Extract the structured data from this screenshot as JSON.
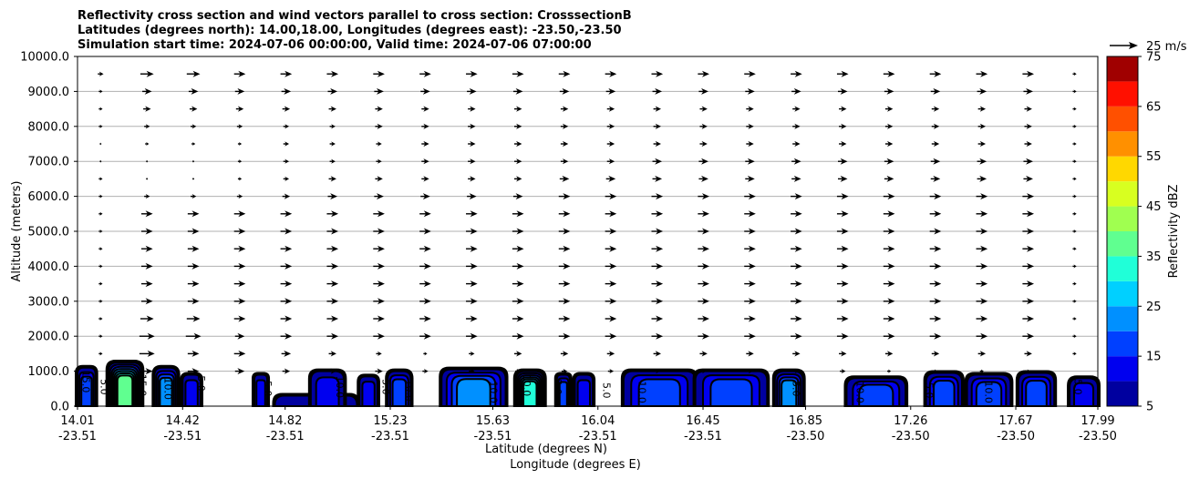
{
  "chart_data": {
    "type": "contour",
    "title": [
      "Reflectivity cross section and wind vectors parallel to cross section: CrosssectionB",
      "Latitudes (degrees north): 14.00,18.00, Longitudes (degrees east): -23.50,-23.50",
      "Simulation start time: 2024-07-06 00:00:00, Valid time: 2024-07-06 07:00:00"
    ],
    "xlabel_lat": "Latitude (degrees N)",
    "xlabel_lon": "Longitude (degrees E)",
    "ylabel": "Altitude (meters)",
    "xlim": [
      14.01,
      17.99
    ],
    "ylim": [
      0,
      10000
    ],
    "grid": "horizontal",
    "x_ticks": [
      {
        "lat": "14.01",
        "lon": "-23.51",
        "value": 14.01
      },
      {
        "lat": "14.42",
        "lon": "-23.51",
        "value": 14.42
      },
      {
        "lat": "14.82",
        "lon": "-23.51",
        "value": 14.82
      },
      {
        "lat": "15.23",
        "lon": "-23.51",
        "value": 15.23
      },
      {
        "lat": "15.63",
        "lon": "-23.51",
        "value": 15.63
      },
      {
        "lat": "16.04",
        "lon": "-23.51",
        "value": 16.04
      },
      {
        "lat": "16.45",
        "lon": "-23.51",
        "value": 16.45
      },
      {
        "lat": "16.85",
        "lon": "-23.50",
        "value": 16.85
      },
      {
        "lat": "17.26",
        "lon": "-23.50",
        "value": 17.26
      },
      {
        "lat": "17.67",
        "lon": "-23.50",
        "value": 17.67
      },
      {
        "lat": "17.99",
        "lon": "-23.50",
        "value": 17.99
      }
    ],
    "y_ticks": [
      "0.0",
      "1000.0",
      "2000.0",
      "3000.0",
      "4000.0",
      "5000.0",
      "6000.0",
      "7000.0",
      "8000.0",
      "9000.0",
      "10000.0"
    ],
    "colorbar": {
      "label": "Reflectivity dBZ",
      "ticks": [
        "5",
        "15",
        "25",
        "35",
        "45",
        "55",
        "65",
        "75"
      ],
      "levels": [
        5,
        10,
        15,
        20,
        25,
        30,
        35,
        40,
        45,
        50,
        55,
        60,
        65,
        70,
        75
      ],
      "colors": [
        "#00009f",
        "#0000ef",
        "#0040ff",
        "#0090ff",
        "#00d0ff",
        "#20ffd8",
        "#60ff90",
        "#a0ff50",
        "#d8ff20",
        "#ffd800",
        "#ff9000",
        "#ff5000",
        "#ff1000",
        "#a00000"
      ]
    },
    "quiver_key": {
      "label": "25 m/s",
      "speed": 25
    },
    "wind_rows": [
      {
        "alt": 500,
        "speeds": [
          0,
          0,
          0,
          0,
          0,
          0,
          0,
          0,
          0,
          0,
          0,
          0,
          0,
          0,
          0,
          0,
          0,
          0,
          0,
          0,
          0,
          0
        ]
      },
      {
        "alt": 1000,
        "speeds": [
          0,
          6,
          6,
          5,
          4,
          4,
          4,
          3,
          3,
          3,
          3,
          3,
          3,
          3,
          3,
          3,
          3,
          2,
          2,
          2,
          2,
          0
        ]
      },
      {
        "alt": 1500,
        "speeds": [
          2,
          8,
          6,
          6,
          5,
          4,
          3,
          2,
          3,
          4,
          4,
          4,
          4,
          4,
          4,
          4,
          4,
          4,
          4,
          4,
          4,
          2
        ]
      },
      {
        "alt": 2000,
        "speeds": [
          2,
          8,
          8,
          5,
          6,
          6,
          6,
          6,
          6,
          6,
          6,
          6,
          6,
          6,
          6,
          6,
          6,
          6,
          6,
          6,
          6,
          2
        ]
      },
      {
        "alt": 2500,
        "speeds": [
          2,
          7,
          7,
          6,
          6,
          6,
          6,
          6,
          6,
          6,
          6,
          6,
          6,
          6,
          6,
          6,
          6,
          6,
          6,
          6,
          6,
          2
        ]
      },
      {
        "alt": 3000,
        "speeds": [
          2,
          6,
          6,
          6,
          6,
          6,
          6,
          6,
          6,
          6,
          6,
          6,
          6,
          6,
          6,
          6,
          6,
          6,
          6,
          6,
          6,
          2
        ]
      },
      {
        "alt": 3500,
        "speeds": [
          2,
          6,
          6,
          6,
          6,
          6,
          6,
          6,
          6,
          6,
          6,
          6,
          6,
          6,
          6,
          6,
          6,
          6,
          6,
          6,
          6,
          2
        ]
      },
      {
        "alt": 4000,
        "speeds": [
          2,
          6,
          6,
          6,
          6,
          6,
          6,
          6,
          6,
          6,
          6,
          6,
          6,
          6,
          6,
          6,
          6,
          6,
          6,
          6,
          6,
          2
        ]
      },
      {
        "alt": 4500,
        "speeds": [
          2,
          6,
          6,
          6,
          6,
          6,
          6,
          6,
          6,
          6,
          6,
          6,
          6,
          6,
          6,
          6,
          6,
          6,
          6,
          6,
          6,
          2
        ]
      },
      {
        "alt": 5000,
        "speeds": [
          2,
          6,
          6,
          6,
          6,
          6,
          6,
          6,
          6,
          6,
          6,
          6,
          6,
          6,
          6,
          6,
          6,
          6,
          6,
          6,
          6,
          2
        ]
      },
      {
        "alt": 5500,
        "speeds": [
          2,
          6,
          6,
          6,
          6,
          6,
          6,
          6,
          6,
          6,
          6,
          6,
          6,
          6,
          6,
          6,
          6,
          6,
          6,
          6,
          6,
          2
        ]
      },
      {
        "alt": 6000,
        "speeds": [
          2,
          3,
          3,
          3,
          4,
          5,
          5,
          5,
          5,
          5,
          6,
          6,
          6,
          6,
          6,
          6,
          6,
          6,
          6,
          6,
          6,
          2
        ]
      },
      {
        "alt": 6500,
        "speeds": [
          2,
          1,
          1,
          2,
          3,
          4,
          4,
          4,
          4,
          4,
          5,
          5,
          5,
          5,
          5,
          5,
          5,
          5,
          5,
          5,
          5,
          2
        ]
      },
      {
        "alt": 7000,
        "speeds": [
          1,
          1,
          1,
          2,
          3,
          3,
          3,
          4,
          4,
          4,
          4,
          4,
          5,
          5,
          5,
          5,
          5,
          5,
          5,
          5,
          5,
          2
        ]
      },
      {
        "alt": 7500,
        "speeds": [
          1,
          2,
          2,
          2,
          3,
          3,
          3,
          4,
          4,
          4,
          4,
          4,
          4,
          4,
          4,
          4,
          4,
          4,
          4,
          4,
          4,
          2
        ]
      },
      {
        "alt": 8000,
        "speeds": [
          2,
          3,
          3,
          3,
          3,
          3,
          4,
          4,
          4,
          4,
          4,
          4,
          4,
          4,
          4,
          4,
          4,
          4,
          4,
          4,
          4,
          2
        ]
      },
      {
        "alt": 8500,
        "speeds": [
          2,
          4,
          4,
          4,
          4,
          4,
          4,
          4,
          4,
          4,
          4,
          4,
          4,
          4,
          4,
          4,
          4,
          4,
          4,
          4,
          4,
          2
        ]
      },
      {
        "alt": 9000,
        "speeds": [
          2,
          5,
          5,
          5,
          5,
          5,
          5,
          5,
          5,
          5,
          5,
          5,
          5,
          5,
          5,
          5,
          5,
          5,
          5,
          5,
          5,
          2
        ]
      },
      {
        "alt": 9500,
        "speeds": [
          3,
          7,
          7,
          6,
          6,
          6,
          6,
          6,
          6,
          6,
          6,
          6,
          6,
          6,
          6,
          6,
          6,
          6,
          6,
          6,
          6,
          2
        ]
      },
      {
        "alt": 10000,
        "speeds": [
          0,
          0,
          0,
          0,
          0,
          0,
          0,
          0,
          0,
          0,
          0,
          0,
          0,
          0,
          0,
          0,
          0,
          0,
          0,
          0,
          0,
          0
        ]
      }
    ],
    "reflectivity_cells": [
      {
        "lat_start": 14.01,
        "lat_end": 14.08,
        "top_alt": 1100,
        "max_dbz": 15
      },
      {
        "lat_start": 14.13,
        "lat_end": 14.26,
        "top_alt": 1250,
        "max_dbz": 35
      },
      {
        "lat_start": 14.31,
        "lat_end": 14.4,
        "top_alt": 1100,
        "max_dbz": 20
      },
      {
        "lat_start": 14.42,
        "lat_end": 14.49,
        "top_alt": 900,
        "max_dbz": 10
      },
      {
        "lat_start": 14.7,
        "lat_end": 14.75,
        "top_alt": 900,
        "max_dbz": 10
      },
      {
        "lat_start": 14.78,
        "lat_end": 15.1,
        "top_alt": 300,
        "max_dbz": 5
      },
      {
        "lat_start": 14.92,
        "lat_end": 15.05,
        "top_alt": 1000,
        "max_dbz": 10
      },
      {
        "lat_start": 15.11,
        "lat_end": 15.18,
        "top_alt": 850,
        "max_dbz": 10
      },
      {
        "lat_start": 15.22,
        "lat_end": 15.31,
        "top_alt": 1000,
        "max_dbz": 15
      },
      {
        "lat_start": 15.43,
        "lat_end": 15.68,
        "top_alt": 1050,
        "max_dbz": 20
      },
      {
        "lat_start": 15.72,
        "lat_end": 15.83,
        "top_alt": 1000,
        "max_dbz": 30
      },
      {
        "lat_start": 15.88,
        "lat_end": 15.93,
        "top_alt": 900,
        "max_dbz": 15
      },
      {
        "lat_start": 15.95,
        "lat_end": 16.02,
        "top_alt": 900,
        "max_dbz": 10
      },
      {
        "lat_start": 16.14,
        "lat_end": 16.42,
        "top_alt": 1000,
        "max_dbz": 15
      },
      {
        "lat_start": 16.42,
        "lat_end": 16.7,
        "top_alt": 1000,
        "max_dbz": 15
      },
      {
        "lat_start": 16.73,
        "lat_end": 16.84,
        "top_alt": 1000,
        "max_dbz": 20
      },
      {
        "lat_start": 17.01,
        "lat_end": 17.24,
        "top_alt": 800,
        "max_dbz": 15
      },
      {
        "lat_start": 17.32,
        "lat_end": 17.46,
        "top_alt": 950,
        "max_dbz": 15
      },
      {
        "lat_start": 17.48,
        "lat_end": 17.65,
        "top_alt": 900,
        "max_dbz": 15
      },
      {
        "lat_start": 17.68,
        "lat_end": 17.82,
        "top_alt": 950,
        "max_dbz": 15
      },
      {
        "lat_start": 17.88,
        "lat_end": 17.99,
        "top_alt": 800,
        "max_dbz": 10
      }
    ],
    "contour_labels": [
      {
        "text": "15.0",
        "lat": 14.03,
        "alt": 700
      },
      {
        "text": "5.0",
        "lat": 14.1,
        "alt": 550
      },
      {
        "text": "15.0",
        "lat": 14.25,
        "alt": 600
      },
      {
        "text": "10.0",
        "lat": 14.35,
        "alt": 500
      },
      {
        "text": "5.0",
        "lat": 14.48,
        "alt": 650
      },
      {
        "text": "5.0",
        "lat": 14.74,
        "alt": 500
      },
      {
        "text": "10.0",
        "lat": 15.02,
        "alt": 550
      },
      {
        "text": "5.0",
        "lat": 15.2,
        "alt": 550
      },
      {
        "text": "10.0",
        "lat": 15.29,
        "alt": 450
      },
      {
        "text": "10.0",
        "lat": 15.62,
        "alt": 400
      },
      {
        "text": "10.0",
        "lat": 15.75,
        "alt": 600
      },
      {
        "text": "5.0",
        "lat": 15.87,
        "alt": 550
      },
      {
        "text": "5.0",
        "lat": 16.06,
        "alt": 450
      },
      {
        "text": "10.0",
        "lat": 16.2,
        "alt": 400
      },
      {
        "text": "5.0",
        "lat": 16.8,
        "alt": 500
      },
      {
        "text": "10.0",
        "lat": 17.05,
        "alt": 400
      },
      {
        "text": "5.0",
        "lat": 17.32,
        "alt": 450
      },
      {
        "text": "10.0",
        "lat": 17.55,
        "alt": 400
      },
      {
        "text": "5.0",
        "lat": 17.9,
        "alt": 550
      }
    ]
  }
}
